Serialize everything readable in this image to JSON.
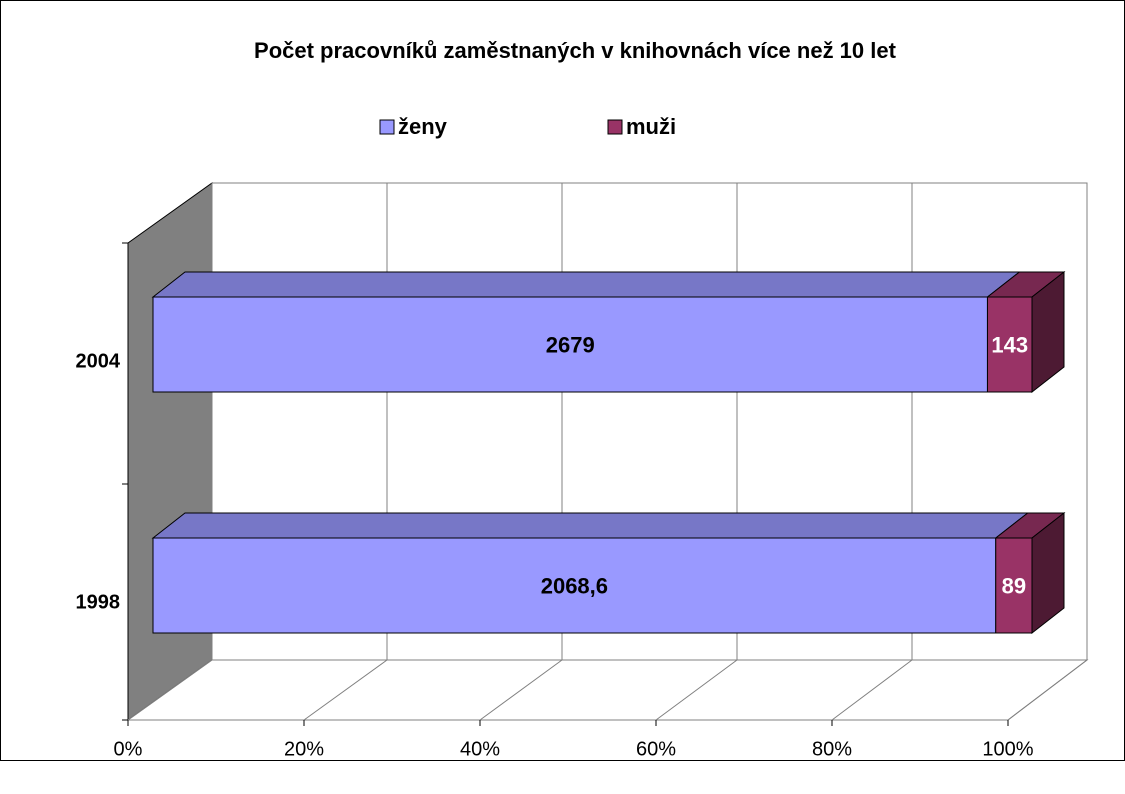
{
  "chart_data": {
    "type": "bar",
    "orientation": "horizontal",
    "stacking": "percent",
    "title": "Počet pracovníků zaměstnaných v knihovnách více než 10 let",
    "categories": [
      "1998",
      "2004"
    ],
    "series": [
      {
        "name": "ženy",
        "color": "#9999ff",
        "values": [
          2068.6,
          2679
        ],
        "value_labels": [
          "2068,6",
          "2679"
        ]
      },
      {
        "name": "muži",
        "color": "#993366",
        "values": [
          89,
          143
        ]
      }
    ],
    "xlim": [
      0,
      100
    ],
    "xticks": [
      {
        "value": 0,
        "label": "0%"
      },
      {
        "value": 20,
        "label": "20%"
      },
      {
        "value": 40,
        "label": "40%"
      },
      {
        "value": 60,
        "label": "60%"
      },
      {
        "value": 80,
        "label": "80%"
      },
      {
        "value": 100,
        "label": "100%"
      }
    ],
    "grid": true,
    "legend": "top"
  }
}
